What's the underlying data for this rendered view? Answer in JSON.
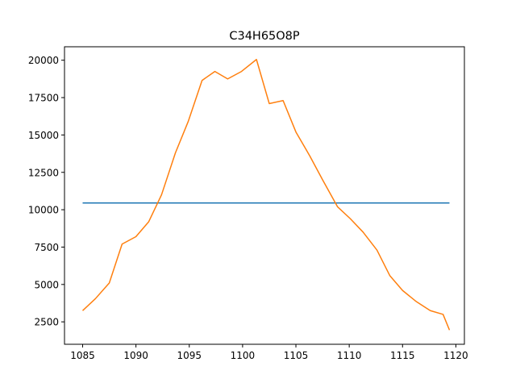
{
  "chart_data": {
    "type": "line",
    "title": "C34H65O8P",
    "xlabel": "",
    "ylabel": "",
    "xlim": [
      1083.3,
      1120.8
    ],
    "ylim": [
      1000,
      20900
    ],
    "xticks": [
      1085,
      1090,
      1095,
      1100,
      1105,
      1110,
      1115,
      1120
    ],
    "yticks": [
      2500,
      5000,
      7500,
      10000,
      12500,
      15000,
      17500,
      20000
    ],
    "grid": false,
    "legend": "none",
    "series": [
      {
        "color": "#1f77b4",
        "x": [
          1085.0,
          1119.4
        ],
        "y": [
          10450,
          10450
        ]
      },
      {
        "color": "#ff7f0e",
        "x": [
          1085.0,
          1086.2,
          1087.5,
          1088.7,
          1090.0,
          1091.2,
          1092.4,
          1093.7,
          1094.9,
          1096.2,
          1097.4,
          1098.6,
          1099.9,
          1101.3,
          1102.5,
          1103.8,
          1105.0,
          1106.3,
          1107.5,
          1108.9,
          1110.1,
          1111.3,
          1112.6,
          1113.8,
          1115.0,
          1116.3,
          1117.6,
          1118.8,
          1119.4
        ],
        "y": [
          3250,
          4050,
          5100,
          7700,
          8200,
          9200,
          11000,
          13800,
          15900,
          18650,
          19250,
          18750,
          19250,
          20050,
          17100,
          17300,
          15200,
          13600,
          12000,
          10200,
          9400,
          8500,
          7300,
          5600,
          4600,
          3850,
          3250,
          3000,
          1950
        ]
      }
    ]
  }
}
